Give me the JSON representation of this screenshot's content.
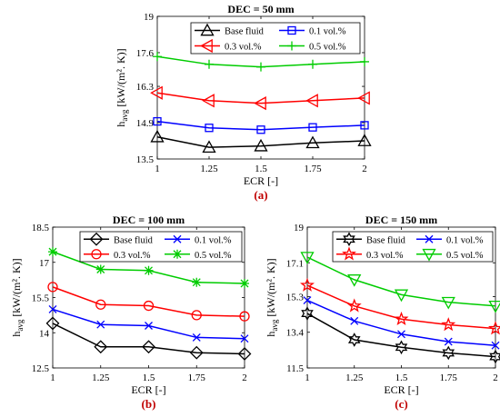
{
  "chart_data": [
    {
      "id": "a",
      "type": "line",
      "title": "DEC = 50 mm",
      "caption": "(a)",
      "xlabel": "ECR [-]",
      "ylabel_main": "h",
      "ylabel_sub": "avg",
      "ylabel_unit": " [kW/(m². K)]",
      "x": [
        1,
        1.25,
        1.5,
        1.75,
        2
      ],
      "xticks": [
        "1",
        "1.25",
        "1.5",
        "1.75",
        "2"
      ],
      "ylim": [
        13.5,
        19
      ],
      "yticks": [
        13.5,
        14.9,
        16.3,
        17.6,
        19
      ],
      "grid": false,
      "legend": {
        "placement": "top-right",
        "columns": 2
      },
      "series": [
        {
          "name": "Base fluid",
          "color": "#000000",
          "marker": "triangle-up",
          "values": [
            14.35,
            13.95,
            14.0,
            14.12,
            14.2
          ]
        },
        {
          "name": "0.1 vol.%",
          "color": "#0000ff",
          "marker": "square",
          "values": [
            14.95,
            14.7,
            14.63,
            14.72,
            14.8
          ]
        },
        {
          "name": "0.3 vol.%",
          "color": "#ff0000",
          "marker": "triangle-left",
          "values": [
            16.05,
            15.75,
            15.65,
            15.75,
            15.85
          ]
        },
        {
          "name": "0.5 vol.%",
          "color": "#00cc00",
          "marker": "plus",
          "values": [
            17.45,
            17.15,
            17.05,
            17.15,
            17.25
          ]
        }
      ]
    },
    {
      "id": "b",
      "type": "line",
      "title": "DEC = 100 mm",
      "caption": "(b)",
      "xlabel": "ECR [-]",
      "ylabel_main": "h",
      "ylabel_sub": "avg",
      "ylabel_unit": " [kW/(m². K)]",
      "x": [
        1,
        1.25,
        1.5,
        1.75,
        2
      ],
      "xticks": [
        "1",
        "1.25",
        "1.5",
        "1.75",
        "2"
      ],
      "ylim": [
        12.5,
        18.5
      ],
      "yticks": [
        12.5,
        14,
        15.5,
        17,
        18.5
      ],
      "grid": false,
      "legend": {
        "placement": "top-right",
        "columns": 2
      },
      "series": [
        {
          "name": "Base fluid",
          "color": "#000000",
          "marker": "diamond",
          "values": [
            14.4,
            13.4,
            13.4,
            13.15,
            13.1
          ]
        },
        {
          "name": "0.1 vol.%",
          "color": "#0000ff",
          "marker": "x",
          "values": [
            15.0,
            14.35,
            14.3,
            13.8,
            13.75
          ]
        },
        {
          "name": "0.3 vol.%",
          "color": "#ff0000",
          "marker": "circle",
          "values": [
            15.95,
            15.2,
            15.15,
            14.75,
            14.7
          ]
        },
        {
          "name": "0.5 vol.%",
          "color": "#00cc00",
          "marker": "asterisk",
          "values": [
            17.45,
            16.7,
            16.65,
            16.15,
            16.1
          ]
        }
      ]
    },
    {
      "id": "c",
      "type": "line",
      "title": "DEC = 150 mm",
      "caption": "(c)",
      "xlabel": "ECR [-]",
      "ylabel_main": "h",
      "ylabel_sub": "avg",
      "ylabel_unit": " [kW/(m². K)]",
      "x": [
        1,
        1.25,
        1.5,
        1.75,
        2
      ],
      "xticks": [
        "1",
        "1.25",
        "1.5",
        "1.75",
        "2"
      ],
      "ylim": [
        11.5,
        19
      ],
      "yticks": [
        11.5,
        13.4,
        15.3,
        17.1,
        19
      ],
      "grid": false,
      "legend": {
        "placement": "top-right",
        "columns": 2
      },
      "series": [
        {
          "name": "Base fluid",
          "color": "#000000",
          "marker": "hexagram",
          "values": [
            14.4,
            13.0,
            12.6,
            12.3,
            12.1
          ]
        },
        {
          "name": "0.1 vol.%",
          "color": "#0000ff",
          "marker": "x",
          "values": [
            15.1,
            14.0,
            13.3,
            12.9,
            12.7
          ]
        },
        {
          "name": "0.3 vol.%",
          "color": "#ff0000",
          "marker": "pentagram",
          "values": [
            15.9,
            14.8,
            14.1,
            13.8,
            13.6
          ]
        },
        {
          "name": "0.5 vol.%",
          "color": "#00cc00",
          "marker": "triangle-down",
          "values": [
            17.4,
            16.2,
            15.4,
            15.0,
            14.8
          ]
        }
      ]
    }
  ]
}
